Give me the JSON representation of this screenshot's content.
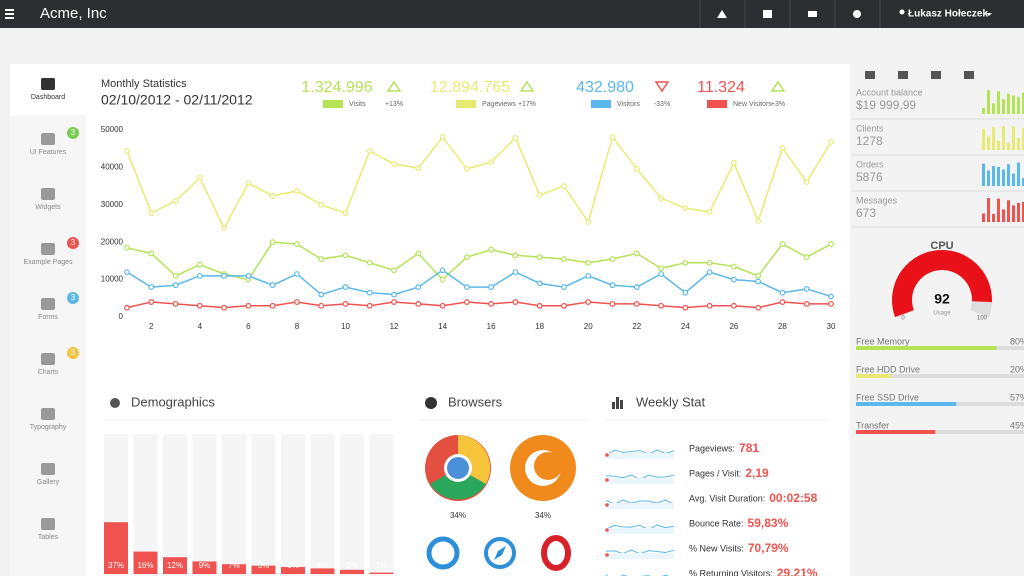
{
  "header": {
    "brand": "Acme, Inc",
    "user": "Łukasz Hołeczek"
  },
  "sidebar": [
    {
      "label": "Dashboard",
      "active": true
    },
    {
      "label": "UI Features",
      "badge": 3,
      "badge_color": "#78cd51"
    },
    {
      "label": "Widgets"
    },
    {
      "label": "Example Pages",
      "badge": 3,
      "badge_color": "#f0534f"
    },
    {
      "label": "Forms",
      "badge": 3,
      "badge_color": "#5bb8ea"
    },
    {
      "label": "Charts",
      "badge": 3,
      "badge_color": "#f5c342"
    },
    {
      "label": "Typography"
    },
    {
      "label": "Gallery"
    },
    {
      "label": "Tables"
    }
  ],
  "stats": {
    "title": "Monthly Statistics",
    "date_range": "02/10/2012 - 02/11/2012",
    "items": [
      {
        "total": "1.324.996",
        "change": "+13%",
        "trend": "up"
      },
      {
        "total": "12.894.765",
        "change": "+17%",
        "trend": "up"
      },
      {
        "total": "432.980",
        "change": "-33%",
        "trend": "down"
      },
      {
        "total": "11.324",
        "change": "+3%",
        "trend": "up"
      }
    ]
  },
  "chart_data": [
    {
      "type": "line",
      "x": [
        1,
        2,
        3,
        4,
        5,
        6,
        7,
        8,
        9,
        10,
        11,
        12,
        13,
        14,
        15,
        16,
        17,
        18,
        19,
        20,
        21,
        22,
        23,
        24,
        25,
        26,
        27,
        28,
        29,
        30
      ],
      "xlim": [
        1,
        30
      ],
      "xticks": [
        2,
        4,
        6,
        8,
        10,
        12,
        14,
        16,
        18,
        20,
        22,
        24,
        26,
        28,
        30
      ],
      "ylim": [
        0,
        50000
      ],
      "yticks": [
        0,
        10000,
        20000,
        30000,
        40000,
        50000
      ],
      "series": [
        {
          "name": "Visits",
          "color": "#b5e356",
          "values": [
            18500,
            17000,
            11000,
            14000,
            11500,
            10000,
            20000,
            19500,
            15500,
            16500,
            14500,
            12500,
            17000,
            10000,
            16000,
            18000,
            16500,
            16000,
            15500,
            14500,
            15500,
            17000,
            13000,
            14500,
            14500,
            13500,
            11000,
            19500,
            16000,
            19500
          ]
        },
        {
          "name": "Pageviews",
          "color": "#e8eb72",
          "values": [
            44400,
            27800,
            31000,
            37200,
            23800,
            35800,
            32400,
            33700,
            30000,
            27800,
            44400,
            40900,
            39800,
            48100,
            39600,
            41400,
            47900,
            32600,
            35000,
            25400,
            48100,
            39600,
            31800,
            29100,
            28100,
            41200,
            25700,
            45200,
            36100,
            46800
          ]
        },
        {
          "name": "Visitors",
          "color": "#5bb8ea",
          "values": [
            12000,
            8000,
            8500,
            11000,
            11000,
            11000,
            8500,
            11500,
            6000,
            8000,
            6500,
            6000,
            8000,
            12500,
            8000,
            8000,
            12000,
            9000,
            8000,
            11000,
            8500,
            8000,
            11500,
            6500,
            12000,
            10000,
            9500,
            6500,
            7500,
            5500
          ]
        },
        {
          "name": "New Visitors",
          "color": "#f0534f",
          "values": [
            2500,
            4000,
            3500,
            3000,
            2500,
            3000,
            3000,
            4000,
            3000,
            3500,
            3000,
            4000,
            3500,
            3000,
            4000,
            3500,
            4000,
            3000,
            3000,
            4000,
            3500,
            3500,
            3000,
            2500,
            3000,
            3000,
            2500,
            4000,
            3500,
            3500
          ]
        }
      ]
    },
    {
      "type": "bar",
      "title": "Demographics",
      "values": [
        37,
        16,
        12,
        9,
        7,
        6,
        5,
        4,
        3,
        1
      ],
      "value_labels": [
        "37%",
        "16%",
        "12%",
        "9%",
        "7%",
        "6%",
        "5%",
        "4%",
        "3%",
        "1%"
      ],
      "color": "#f0534f",
      "ylim": [
        0,
        100
      ]
    }
  ],
  "browsers": {
    "title": "Browsers",
    "shares": [
      "34%",
      "34%"
    ]
  },
  "weekly": {
    "title": "Weekly Stat",
    "items": [
      {
        "label": "Pageviews:",
        "value": "781"
      },
      {
        "label": "Pages / Visit:",
        "value": "2,19"
      },
      {
        "label": "Avg. Visit Duration:",
        "value": "00:02:58"
      },
      {
        "label": "Bounce Rate:",
        "value": "59,83%"
      },
      {
        "label": "% New Visits:",
        "value": "70,79%"
      },
      {
        "label": "% Returning Visitors:",
        "value": "29,21%"
      }
    ]
  },
  "summary": [
    {
      "label": "Account balance",
      "value": "$19 999,99",
      "color": "#b5e356"
    },
    {
      "label": "Clients",
      "value": "1278",
      "color": "#e8eb72"
    },
    {
      "label": "Orders",
      "value": "5876",
      "color": "#5bb8ea"
    },
    {
      "label": "Messages",
      "value": "673",
      "color": "#f0534f"
    }
  ],
  "cpu": {
    "title": "CPU",
    "value": 92,
    "caption": "Usage",
    "min": 0,
    "max": 100
  },
  "resources": [
    {
      "label": "Free Memory",
      "value": 80,
      "value_label": "80%",
      "color": "#b5e356"
    },
    {
      "label": "Free HDD Drive",
      "value": 20,
      "value_label": "20%",
      "color": "#e8eb72"
    },
    {
      "label": "Free SSD Drive",
      "value": 57,
      "value_label": "57%",
      "color": "#5bb8ea"
    },
    {
      "label": "Transfer",
      "value": 45,
      "value_label": "45%",
      "color": "#f0534f"
    }
  ]
}
